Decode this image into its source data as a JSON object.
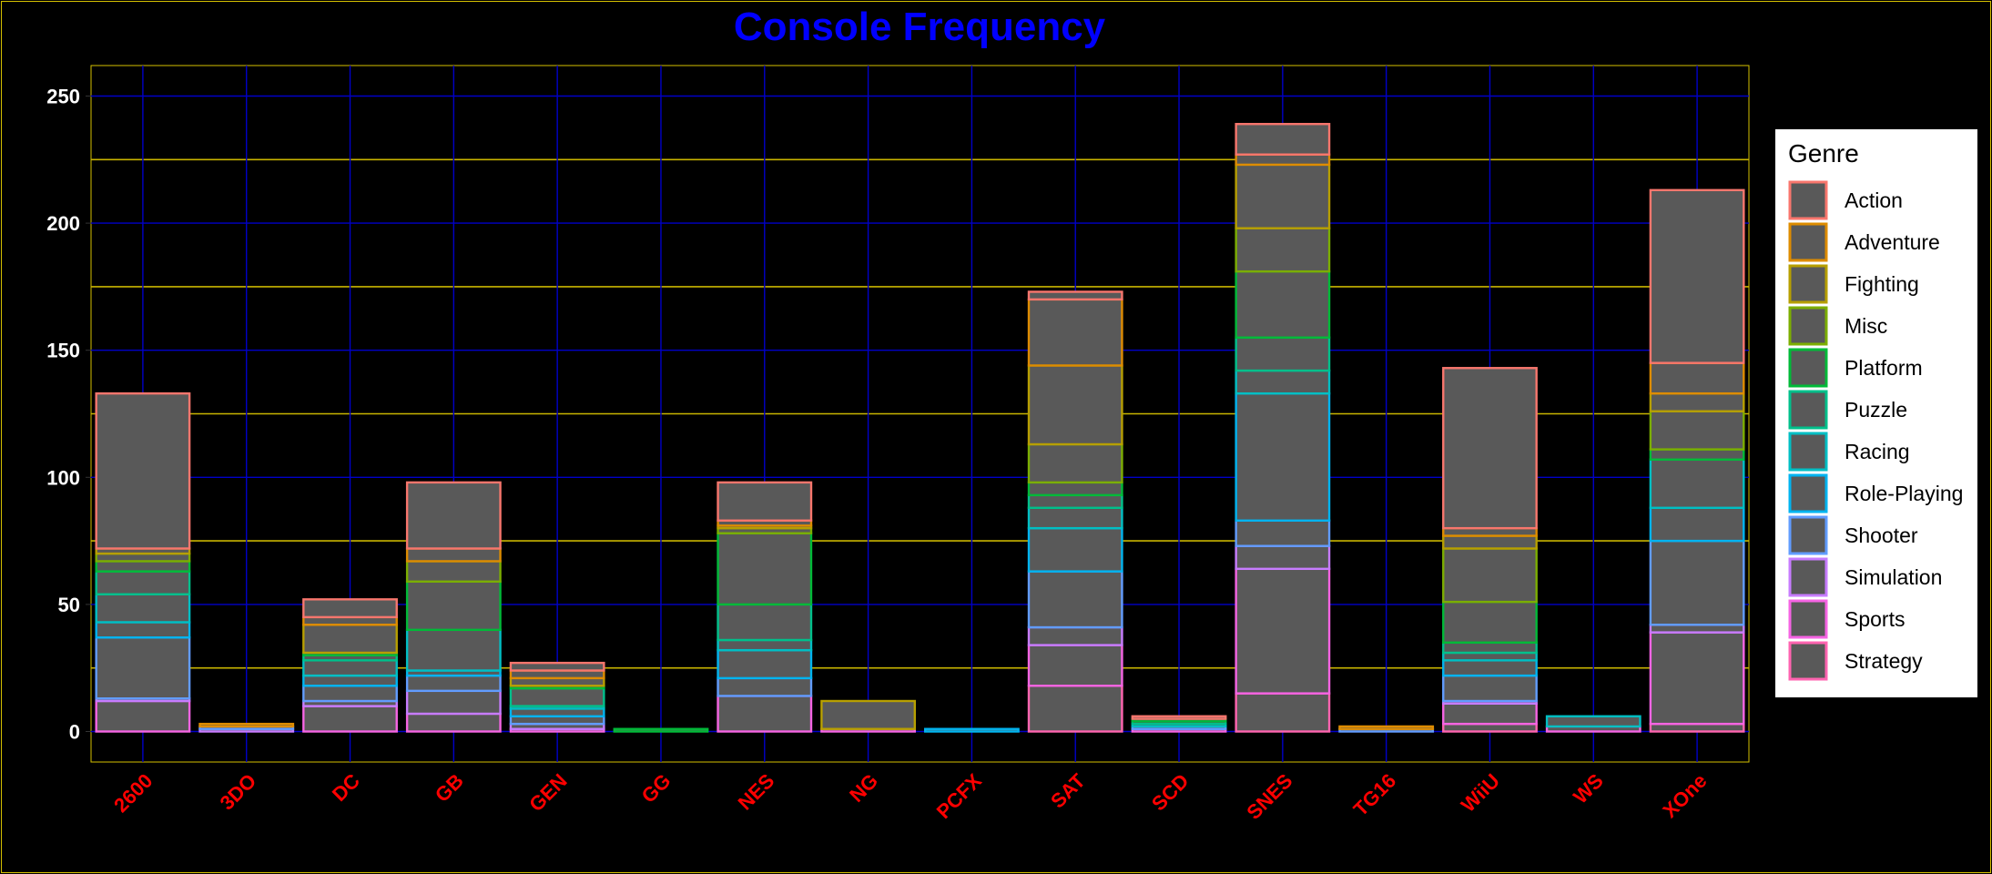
{
  "chart_data": {
    "type": "bar",
    "stacked": true,
    "title": "Console Frequency",
    "xlabel": "",
    "ylabel": "",
    "ylim": [
      -12,
      250
    ],
    "yticks": [
      0,
      50,
      100,
      150,
      200,
      250
    ],
    "grid": true,
    "legend": {
      "title": "Genre",
      "placement": "right"
    },
    "categories": [
      "2600",
      "3DO",
      "DC",
      "GB",
      "GEN",
      "GG",
      "NES",
      "NG",
      "PCFX",
      "SAT",
      "SCD",
      "SNES",
      "TG16",
      "WiiU",
      "WS",
      "XOne"
    ],
    "series": [
      {
        "name": "Strategy",
        "values": [
          0,
          0,
          0,
          0,
          0,
          0,
          0,
          0,
          0,
          18,
          0,
          15,
          0,
          3,
          0,
          3
        ]
      },
      {
        "name": "Sports",
        "values": [
          12,
          0,
          10,
          7,
          1,
          0,
          14,
          1,
          0,
          16,
          1,
          49,
          0,
          8,
          2,
          36
        ]
      },
      {
        "name": "Simulation",
        "values": [
          1,
          1,
          2,
          9,
          2,
          0,
          0,
          0,
          0,
          7,
          0,
          9,
          0,
          1,
          0,
          3
        ]
      },
      {
        "name": "Shooter",
        "values": [
          24,
          1,
          6,
          6,
          3,
          0,
          7,
          0,
          0,
          22,
          1,
          10,
          1,
          10,
          0,
          33
        ]
      },
      {
        "name": "Role-Playing",
        "values": [
          6,
          0,
          4,
          2,
          3,
          0,
          11,
          0,
          1,
          17,
          0,
          50,
          0,
          6,
          0,
          13
        ]
      },
      {
        "name": "Racing",
        "values": [
          11,
          0,
          6,
          16,
          1,
          0,
          4,
          0,
          0,
          8,
          1,
          9,
          0,
          3,
          4,
          19
        ]
      },
      {
        "name": "Puzzle",
        "values": [
          9,
          0,
          2,
          0,
          7,
          0,
          14,
          0,
          0,
          5,
          1,
          13,
          0,
          4,
          0,
          0
        ]
      },
      {
        "name": "Platform",
        "values": [
          4,
          0,
          1,
          19,
          1,
          1,
          28,
          0,
          0,
          5,
          1,
          26,
          0,
          16,
          0,
          4
        ]
      },
      {
        "name": "Misc",
        "values": [
          3,
          0,
          0,
          8,
          0,
          0,
          2,
          0,
          0,
          15,
          0,
          17,
          0,
          21,
          0,
          15
        ]
      },
      {
        "name": "Fighting",
        "values": [
          2,
          0,
          11,
          0,
          3,
          0,
          1,
          11,
          0,
          31,
          0,
          25,
          0,
          5,
          0,
          7
        ]
      },
      {
        "name": "Adventure",
        "values": [
          0,
          1,
          3,
          5,
          3,
          0,
          2,
          0,
          0,
          26,
          0,
          4,
          1,
          3,
          0,
          12
        ]
      },
      {
        "name": "Action",
        "values": [
          61,
          0,
          7,
          26,
          3,
          0,
          15,
          0,
          0,
          3,
          1,
          12,
          0,
          63,
          0,
          68
        ]
      }
    ],
    "legend_order": [
      "Action",
      "Adventure",
      "Fighting",
      "Misc",
      "Platform",
      "Puzzle",
      "Racing",
      "Role-Playing",
      "Shooter",
      "Simulation",
      "Sports",
      "Strategy"
    ]
  },
  "colors": {
    "background": "#000000",
    "border": "#d4c000",
    "bar_fill": "#595959",
    "grid_major": "#0000c8",
    "grid_minor": "#c8b400",
    "title": "#0000ff",
    "x_tick": "#ff0000",
    "y_tick": "#ffffff",
    "legend_bg": "#ffffff",
    "legend_text": "#000000",
    "series": {
      "Action": "#f8766d",
      "Adventure": "#de8c00",
      "Fighting": "#b79f00",
      "Misc": "#7cae00",
      "Platform": "#00ba38",
      "Puzzle": "#00c08b",
      "Racing": "#00bfc4",
      "Role-Playing": "#00b4f0",
      "Shooter": "#619cff",
      "Simulation": "#c77cff",
      "Sports": "#f564e3",
      "Strategy": "#ff64b0"
    }
  }
}
